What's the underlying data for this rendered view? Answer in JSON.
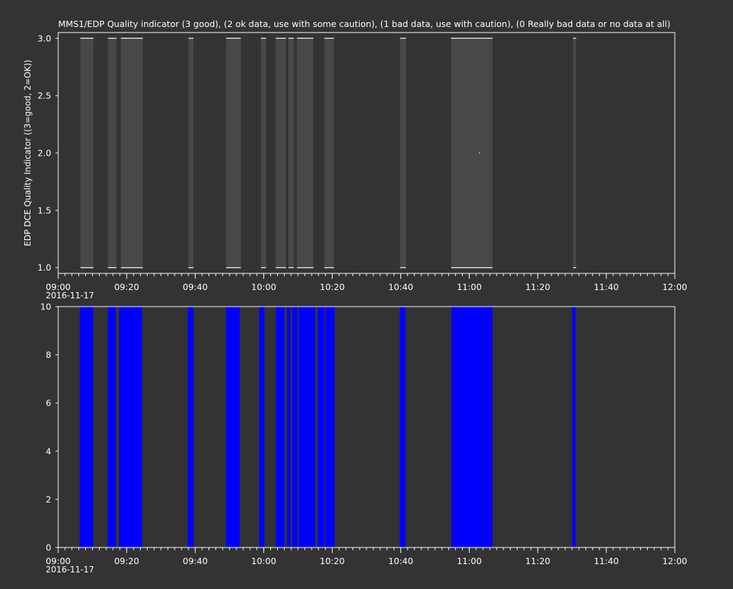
{
  "colors": {
    "background": "#333333",
    "axis": "#ffffff",
    "panel1_fill": "#484848",
    "panel1_tick": "#ffffff",
    "panel2_fill": "#0000ff"
  },
  "chart_data": [
    {
      "type": "bar",
      "title": "MMS1/EDP  Quality indicator (3 good), (2 ok data, use with some caution), (1 bad data, use with caution), (0 Really bad data or no data at all)",
      "ylabel": "EDP DCE Quality Indicator ((3=good, 2=OK))",
      "xlabel": "",
      "date_label": "2016-11-17",
      "xlim": [
        "09:00",
        "12:00"
      ],
      "x_ticks": [
        "09:00",
        "09:20",
        "09:40",
        "10:00",
        "10:20",
        "10:40",
        "11:00",
        "11:20",
        "11:40",
        "12:00"
      ],
      "ylim": [
        0.95,
        3.05
      ],
      "y_ticks": [
        "1.0",
        "1.5",
        "2.0",
        "2.5",
        "3.0"
      ],
      "grid": false,
      "description_value_low": 1.0,
      "description_value_high": 3.0,
      "intervals": [
        [
          "09:06.5",
          "09:10.3"
        ],
        [
          "09:14.5",
          "09:17.0"
        ],
        [
          "09:18.3",
          "09:24.7"
        ],
        [
          "09:38.0",
          "09:39.5"
        ],
        [
          "09:49.0",
          "09:53.3"
        ],
        [
          "09:59.2",
          "10:00.7"
        ],
        [
          "10:03.5",
          "10:06.5"
        ],
        [
          "10:07.2",
          "10:08.8"
        ],
        [
          "10:09.7",
          "10:14.5"
        ],
        [
          "10:17.7",
          "10:20.5"
        ],
        [
          "10:39.8",
          "10:41.5"
        ],
        [
          "10:54.7",
          "11:06.8"
        ],
        [
          "11:30.3",
          "11:31.2"
        ]
      ],
      "points": [
        [
          "11:03.0",
          2.0
        ]
      ]
    },
    {
      "type": "bar",
      "title": "",
      "ylabel": "",
      "xlabel": "",
      "date_label": "2016-11-17",
      "xlim": [
        "09:00",
        "12:00"
      ],
      "x_ticks": [
        "09:00",
        "09:20",
        "09:40",
        "10:00",
        "10:20",
        "10:40",
        "11:00",
        "11:20",
        "11:40",
        "12:00"
      ],
      "ylim": [
        0,
        10
      ],
      "y_ticks": [
        "0",
        "2",
        "4",
        "6",
        "8",
        "10"
      ],
      "grid": false,
      "bar_value": 10,
      "intervals": [
        [
          "09:06.3",
          "09:10.2"
        ],
        [
          "09:14.5",
          "09:16.8"
        ],
        [
          "09:17.8",
          "09:24.5"
        ],
        [
          "09:37.8",
          "09:39.5"
        ],
        [
          "09:49.0",
          "09:53.0"
        ],
        [
          "09:58.7",
          "10:00.2"
        ],
        [
          "10:03.5",
          "10:06.0"
        ],
        [
          "10:06.8",
          "10:07.8"
        ],
        [
          "10:08.3",
          "10:09.8"
        ],
        [
          "10:10.2",
          "10:15.0"
        ],
        [
          "10:15.8",
          "10:17.7"
        ],
        [
          "10:18.0",
          "10:20.7"
        ],
        [
          "10:39.7",
          "10:41.4"
        ],
        [
          "10:54.8",
          "11:06.8"
        ],
        [
          "11:30.0",
          "11:31.0"
        ]
      ]
    }
  ]
}
